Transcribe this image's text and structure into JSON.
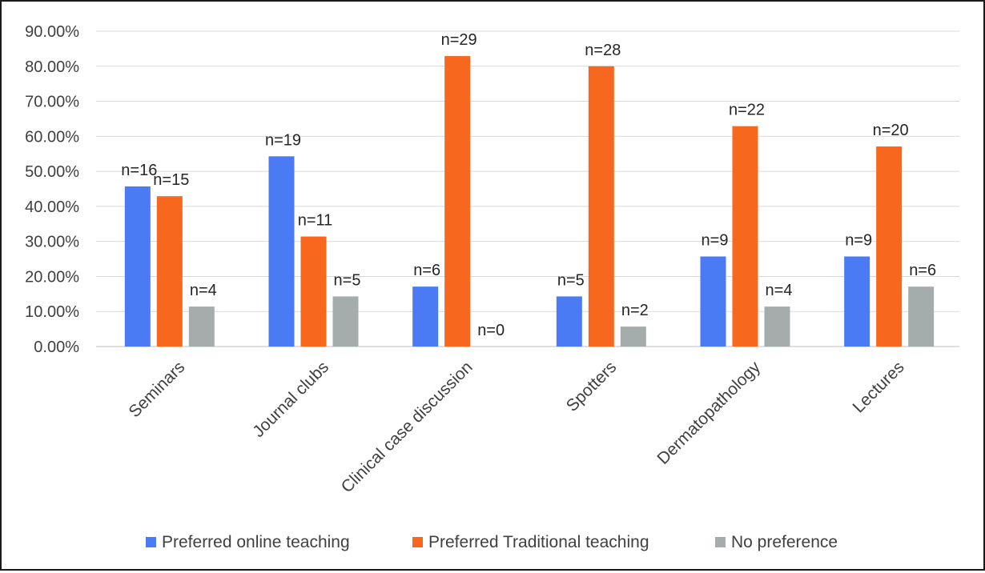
{
  "chart_data": {
    "type": "bar",
    "categories": [
      "Seminars",
      "Journal clubs",
      "Clinical case discussion",
      "Spotters",
      "Dermatopathology",
      "Lectures"
    ],
    "series": [
      {
        "name": "Preferred online teaching",
        "color": "#4a7bf5",
        "values": [
          45.7,
          54.3,
          17.1,
          14.3,
          25.7,
          25.7
        ],
        "labels": [
          "n=16",
          "n=19",
          "n=6",
          "n=5",
          "n=9",
          "n=9"
        ]
      },
      {
        "name": "Preferred Traditional teaching",
        "color": "#f7671e",
        "values": [
          42.9,
          31.4,
          82.9,
          80.0,
          62.9,
          57.1
        ],
        "labels": [
          "n=15",
          "n=11",
          "n=29",
          "n=28",
          "n=22",
          "n=20"
        ]
      },
      {
        "name": "No preference",
        "color": "#a5acac",
        "values": [
          11.4,
          14.3,
          0.0,
          5.7,
          11.4,
          17.1
        ],
        "labels": [
          "n=4",
          "n=5",
          "n=0",
          "n=2",
          "n=4",
          "n=6"
        ]
      }
    ],
    "y_ticks": [
      "0.00%",
      "10.00%",
      "20.00%",
      "30.00%",
      "40.00%",
      "50.00%",
      "60.00%",
      "70.00%",
      "80.00%",
      "90.00%"
    ],
    "ylim": [
      0,
      90
    ],
    "grid": true,
    "legend_position": "bottom",
    "title": "",
    "xlabel": "",
    "ylabel": ""
  }
}
